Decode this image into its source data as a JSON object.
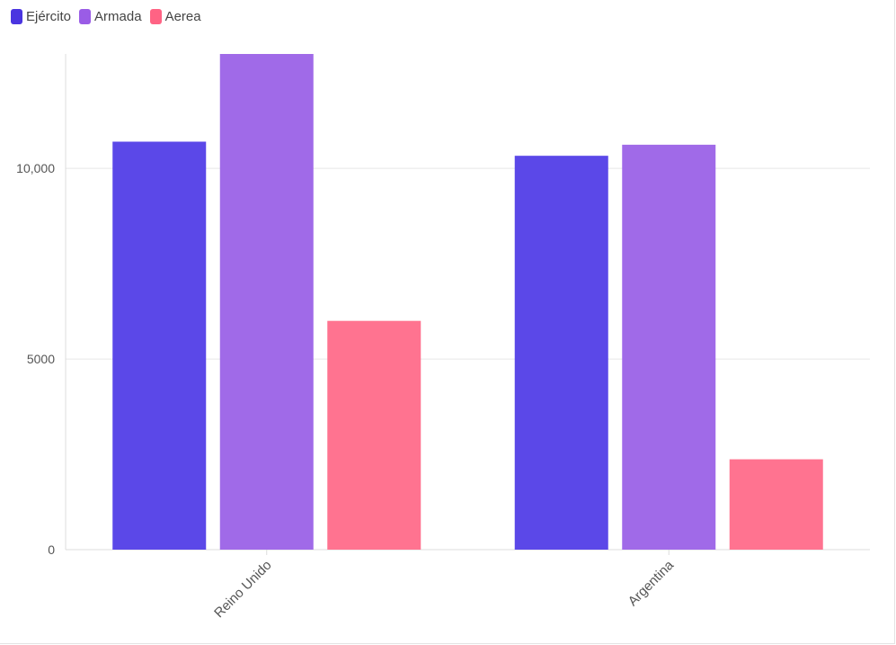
{
  "chart_data": {
    "type": "bar",
    "categories": [
      "Reino Unido",
      "Argentina"
    ],
    "series": [
      {
        "name": "Ejército",
        "values": [
          10700,
          10330
        ],
        "color": "#5b48e8"
      },
      {
        "name": "Armada",
        "values": [
          13000,
          10620
        ],
        "color": "#a06ae8"
      },
      {
        "name": "Aerea",
        "values": [
          6000,
          2370
        ],
        "color": "#ff7390"
      }
    ],
    "yticks": [
      0,
      5000,
      10000
    ],
    "ytick_labels": [
      "0",
      "5000",
      "10,000"
    ],
    "ylim": [
      0,
      13000
    ],
    "grid": true,
    "legend": "top-left",
    "title": "",
    "xlabel": "",
    "ylabel": ""
  }
}
